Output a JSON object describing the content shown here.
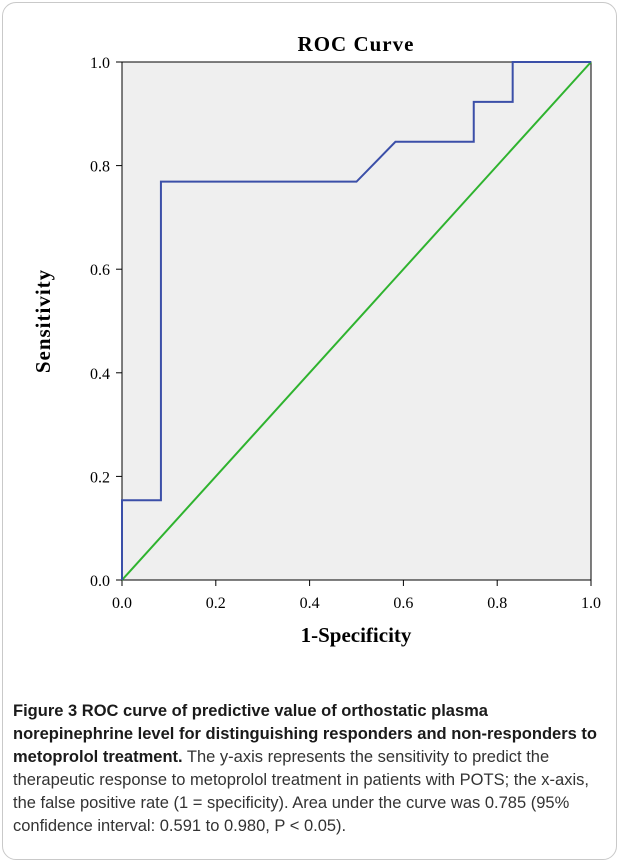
{
  "chart_data": {
    "type": "line",
    "title": "ROC Curve",
    "xlabel": "1-Specificity",
    "ylabel": "Sensitivity",
    "xlim": [
      0.0,
      1.0
    ],
    "ylim": [
      0.0,
      1.0
    ],
    "xticks": [
      "0.0",
      "0.2",
      "0.4",
      "0.6",
      "0.8",
      "1.0"
    ],
    "yticks": [
      "0.0",
      "0.2",
      "0.4",
      "0.6",
      "0.8",
      "1.0"
    ],
    "grid": false,
    "series": [
      {
        "color": "#3b4fa8",
        "points": [
          [
            0.0,
            0.0
          ],
          [
            0.0,
            0.154
          ],
          [
            0.083,
            0.154
          ],
          [
            0.083,
            0.769
          ],
          [
            0.5,
            0.769
          ],
          [
            0.583,
            0.846
          ],
          [
            0.75,
            0.846
          ],
          [
            0.75,
            0.923
          ],
          [
            0.833,
            0.923
          ],
          [
            0.833,
            1.0
          ],
          [
            1.0,
            1.0
          ]
        ]
      },
      {
        "color": "#2fb32f",
        "points": [
          [
            0.0,
            0.0
          ],
          [
            1.0,
            1.0
          ]
        ]
      }
    ],
    "plot_background": "#efefef"
  },
  "caption": {
    "label": "Figure 3",
    "heading": "ROC curve of predictive value of orthostatic plasma norepinephrine level for distinguishing responders and non-responders to metoprolol treatment.",
    "body": "The y-axis represents the sensitivity to predict the therapeutic response to metoprolol treatment in patients with POTS; the x-axis, the false positive rate (1 = specificity). Area under the curve was 0.785 (95% confidence interval: 0.591 to 0.980, P < 0.05)."
  }
}
